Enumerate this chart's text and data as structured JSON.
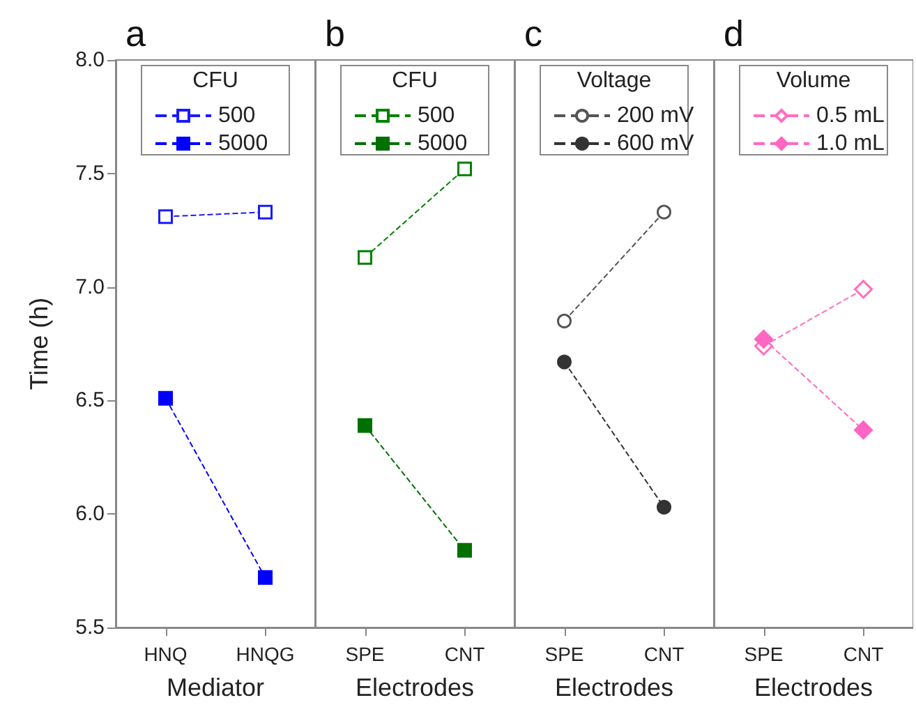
{
  "chart_data": [
    {
      "type": "line",
      "title": "a",
      "xlabel": "Mediator",
      "ylabel": "Time (h)",
      "legend_title": "CFU",
      "categories": [
        "HNQ",
        "HNQG"
      ],
      "series": [
        {
          "name": "500",
          "color": "#1a1aff",
          "marker": "square",
          "values": [
            7.31,
            7.33
          ]
        },
        {
          "name": "5000",
          "color": "#0000ff",
          "marker": "square",
          "values": [
            6.51,
            5.72
          ]
        }
      ],
      "ylim": [
        5.5,
        8.0
      ],
      "yticks": [
        {
          "value": 5.5,
          "label": "5.5"
        },
        {
          "value": 6,
          "label": "6.0"
        },
        {
          "value": 6.5,
          "label": "6.5"
        },
        {
          "value": 7,
          "label": "7.0"
        },
        {
          "value": 7.5,
          "label": "7.5"
        },
        {
          "value": 8,
          "label": "8.0"
        }
      ],
      "grid": false,
      "legend": "top",
      "line_style": "dashed"
    },
    {
      "type": "line",
      "title": "b",
      "xlabel": "Electrodes",
      "legend_title": "CFU",
      "categories": [
        "SPE",
        "CNT"
      ],
      "series": [
        {
          "name": "500",
          "color": "#008000",
          "marker": "square",
          "values": [
            7.13,
            7.52
          ]
        },
        {
          "name": "5000",
          "color": "#007000",
          "marker": "square",
          "values": [
            6.39,
            5.84
          ]
        }
      ],
      "ylim": [
        5.5,
        8.0
      ],
      "tick_labels": "x",
      "grid": false,
      "legend": "top",
      "line_style": "dashed"
    },
    {
      "type": "line",
      "title": "c",
      "xlabel": "Electrodes",
      "legend_title": "Voltage",
      "categories": [
        "SPE",
        "CNT"
      ],
      "series": [
        {
          "name": "200 mV",
          "color": "#555555",
          "marker": "circle",
          "values": [
            6.85,
            7.33
          ]
        },
        {
          "name": "600 mV",
          "color": "#333333",
          "marker": "circle",
          "values": [
            6.67,
            6.03
          ]
        }
      ],
      "ylim": [
        5.5,
        8.0
      ],
      "tick_labels": "x",
      "grid": false,
      "legend": "top",
      "line_style": "dashed"
    },
    {
      "type": "line",
      "title": "d",
      "xlabel": "Electrodes",
      "legend_title": "Volume",
      "categories": [
        "SPE",
        "CNT"
      ],
      "series": [
        {
          "name": "0.5 mL",
          "color": "#ff6fbf",
          "marker": "diamond",
          "values": [
            6.74,
            6.99
          ]
        },
        {
          "name": "1.0 mL",
          "color": "#ff66c4",
          "marker": "diamond",
          "values": [
            6.77,
            6.37
          ]
        }
      ],
      "ylim": [
        5.5,
        8.0
      ],
      "tick_labels": "x",
      "grid": false,
      "legend": "top",
      "line_style": "dashed"
    }
  ]
}
